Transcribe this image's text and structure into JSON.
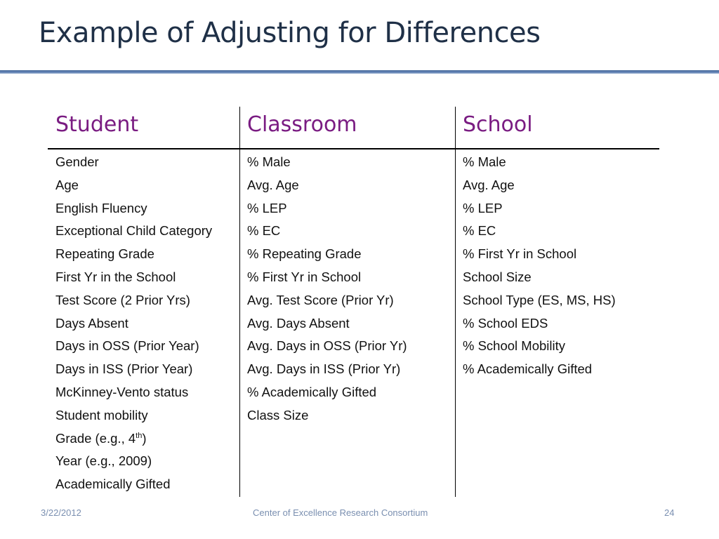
{
  "slide": {
    "title": "Example of Adjusting for Differences"
  },
  "table": {
    "headers": [
      "Student",
      "Classroom",
      "School"
    ],
    "student": [
      "Gender",
      "Age",
      "English Fluency",
      "Exceptional Child Category",
      "Repeating Grade",
      "First Yr in the School",
      "Test Score (2 Prior Yrs)",
      "Days Absent",
      "Days in OSS (Prior Year)",
      "Days in ISS (Prior Year)",
      "McKinney-Vento status",
      "Student mobility",
      "Grade (e.g., 4",
      "Year (e.g., 2009)",
      "Academically Gifted"
    ],
    "grade_superscript": "th",
    "grade_suffix": ")",
    "classroom": [
      "% Male",
      "Avg. Age",
      "% LEP",
      "% EC",
      "% Repeating Grade",
      "% First Yr in School",
      "Avg. Test Score (Prior Yr)",
      "Avg. Days Absent",
      "Avg. Days in OSS (Prior Yr)",
      "Avg. Days in ISS (Prior Yr)",
      "% Academically Gifted",
      "Class Size"
    ],
    "school": [
      "% Male",
      "Avg. Age",
      "% LEP",
      "% EC",
      "% First Yr in School",
      "School Size",
      "School Type (ES, MS, HS)",
      "% School EDS",
      "% School Mobility",
      "% Academically Gifted"
    ]
  },
  "footer": {
    "date": "3/22/2012",
    "center": "Center of Excellence Research Consortium",
    "page": "24"
  },
  "colors": {
    "title": "#1f3047",
    "header": "#7a1c82",
    "accent_rule": "#5e80b3",
    "footer": "#7a8fb0"
  }
}
